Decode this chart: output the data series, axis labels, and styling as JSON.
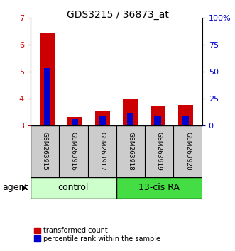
{
  "title": "GDS3215 / 36873_at",
  "samples": [
    "GSM263915",
    "GSM263916",
    "GSM263917",
    "GSM263918",
    "GSM263919",
    "GSM263920"
  ],
  "red_values": [
    6.45,
    3.32,
    3.52,
    3.97,
    3.72,
    3.75
  ],
  "blue_values": [
    5.12,
    3.23,
    3.33,
    3.47,
    3.38,
    3.35
  ],
  "ylim_left": [
    3.0,
    7.0
  ],
  "ylim_right": [
    0,
    100
  ],
  "yticks_left": [
    3,
    4,
    5,
    6,
    7
  ],
  "yticks_right": [
    0,
    25,
    50,
    75,
    100
  ],
  "ytick_labels_right": [
    "0",
    "25",
    "50",
    "75",
    "100%"
  ],
  "control_label": "control",
  "treatment_label": "13-cis RA",
  "agent_label": "agent",
  "legend_red": "transformed count",
  "legend_blue": "percentile rank within the sample",
  "color_red": "#cc0000",
  "color_blue": "#0000cc",
  "color_control_bg": "#ccffcc",
  "color_treatment_bg": "#44dd44",
  "color_sample_bg": "#cccccc",
  "bar_width": 0.55
}
